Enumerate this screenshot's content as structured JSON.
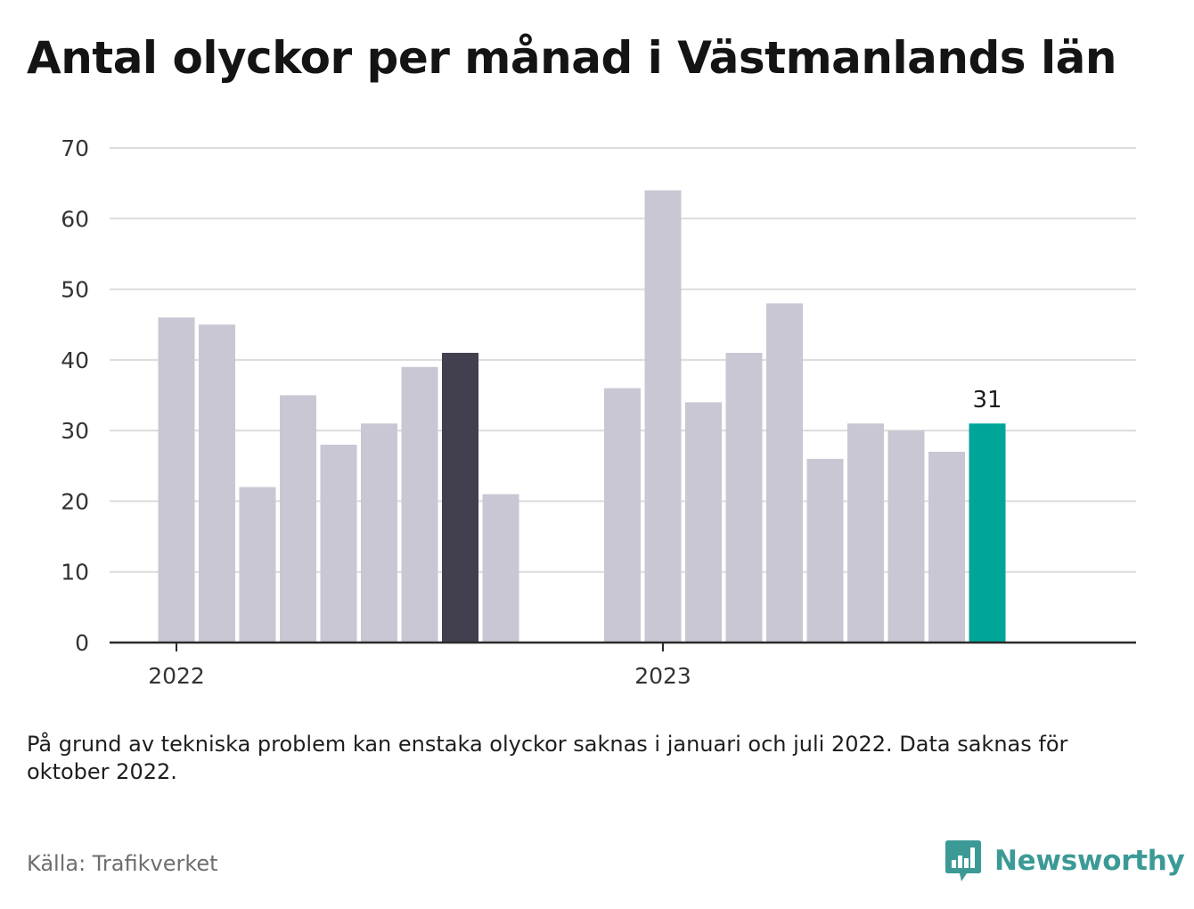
{
  "title": "Antal olyckor per månad i Västmanlands län",
  "note": "På grund av tekniska problem kan enstaka olyckor saknas i januari och juli 2022. Data saknas för oktober 2022.",
  "source": "Källa: Trafikverket",
  "brand": {
    "name": "Newsworthy"
  },
  "colors": {
    "default": "#c8c7d3",
    "highlight_dark": "#42404f",
    "highlight_accent": "#00a59a",
    "grid": "#dcdcdc",
    "axis": "#2a2a2a"
  },
  "chart_data": {
    "type": "bar",
    "title": "Antal olyckor per månad i Västmanlands län",
    "xlabel": "",
    "ylabel": "",
    "ylim": [
      0,
      70
    ],
    "yticks": [
      0,
      10,
      20,
      30,
      40,
      50,
      60,
      70
    ],
    "grid": true,
    "x_ticks": [
      {
        "label": "2022",
        "at": "2022-01"
      },
      {
        "label": "2023",
        "at": "2023-01"
      }
    ],
    "categories": [
      "2022-01",
      "2022-02",
      "2022-03",
      "2022-04",
      "2022-05",
      "2022-06",
      "2022-07",
      "2022-08",
      "2022-09",
      "2022-10",
      "2022-11",
      "2022-12",
      "2023-01",
      "2023-02",
      "2023-03",
      "2023-04",
      "2023-05",
      "2023-06",
      "2023-07",
      "2023-08",
      "2023-09",
      "2023-10",
      "2023-11"
    ],
    "values": [
      46,
      45,
      22,
      35,
      28,
      31,
      39,
      41,
      21,
      null,
      null,
      36,
      64,
      34,
      41,
      48,
      26,
      31,
      30,
      27,
      31,
      null,
      null
    ],
    "highlight": {
      "2022-08": "dark",
      "2023-09": "accent"
    },
    "data_labels": [
      {
        "category": "2023-09",
        "text": "31"
      }
    ]
  }
}
